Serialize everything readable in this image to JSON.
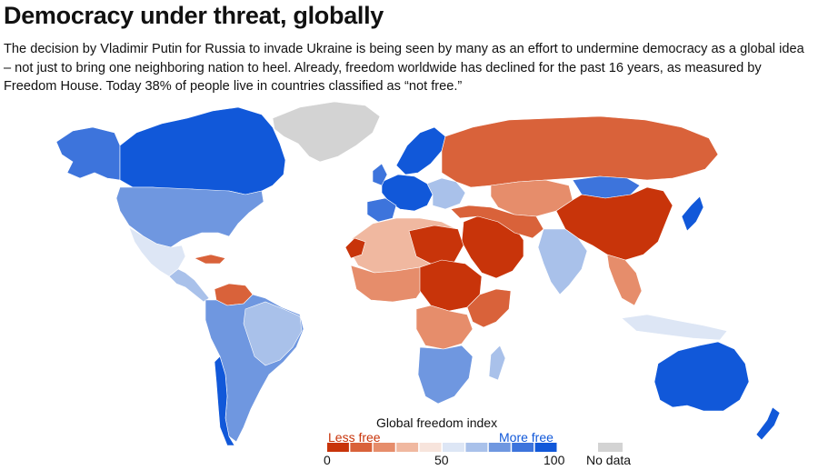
{
  "header": {
    "title": "Democracy under threat, globally",
    "intro": "The decision by Vladimir Putin for Russia to invade Ukraine is being seen by many as an effort to undermine democracy as a global idea – not just to bring one neighboring nation to heel. Already, freedom worldwide has declined for the past 16 years, as measured by Freedom House. Today 38% of people live in countries classified as “not free.”"
  },
  "legend": {
    "title": "Global freedom index",
    "less_label": "Less free",
    "more_label": "More free",
    "min_label": "0",
    "mid_label": "50",
    "max_label": "100",
    "nodata_label": "No data",
    "colors": [
      "#c8340a",
      "#d9623a",
      "#e68d6b",
      "#f0b8a0",
      "#f7e4dc",
      "#dde6f5",
      "#a9c1ea",
      "#6f97e0",
      "#3d74dc",
      "#1158d9"
    ],
    "nodata_color": "#d3d3d3"
  }
}
